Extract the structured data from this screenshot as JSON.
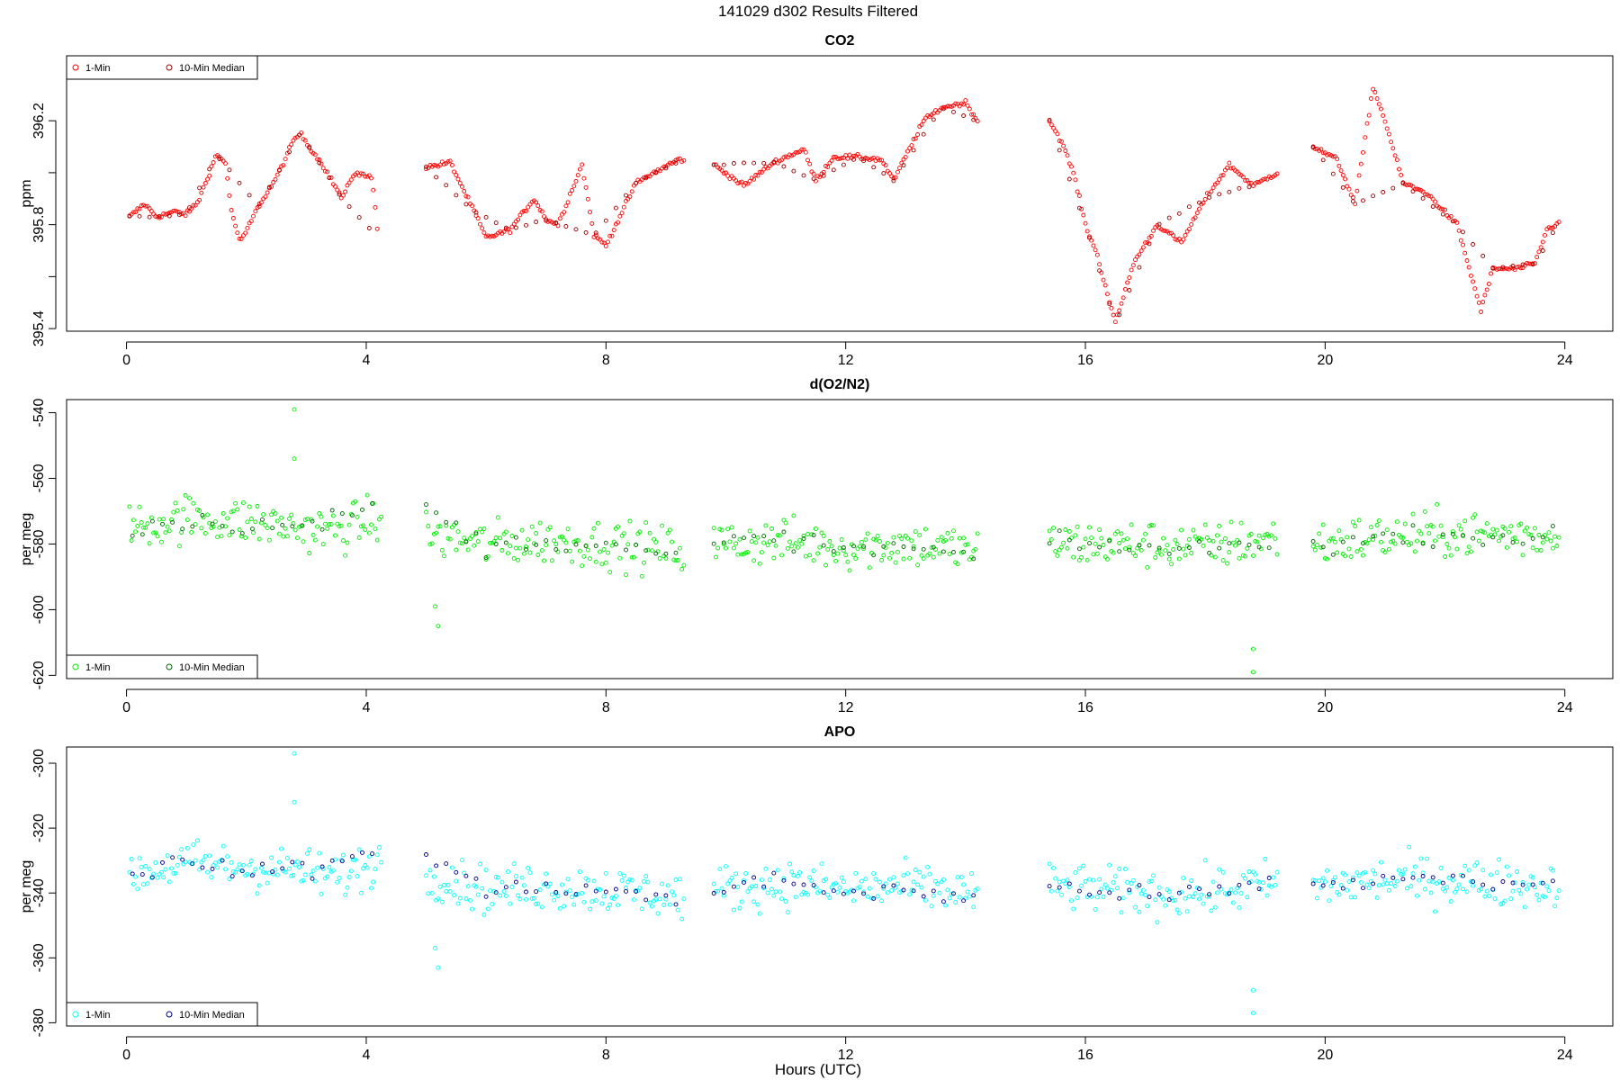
{
  "figure_title": "141029   d302   Results Filtered",
  "xlabel": "Hours (UTC)",
  "chart_data": [
    {
      "type": "scatter",
      "title": "CO2",
      "ylabel": "ppm",
      "xlim": [
        -1.0,
        24.8
      ],
      "ylim": [
        395.39,
        396.45
      ],
      "xticks": [
        0,
        4,
        8,
        12,
        16,
        20,
        24
      ],
      "xtick_labels": [
        "0",
        "4",
        "8",
        "12",
        "16",
        "20",
        "24"
      ],
      "yticks": [
        395.4,
        395.6,
        395.8,
        396.0,
        396.2
      ],
      "ytick_labels": [
        "395.4",
        "",
        "395.8",
        "",
        "396.2"
      ],
      "legend": {
        "position": "top-left",
        "entries": [
          "1-Min",
          "10-Min Median"
        ]
      },
      "series": [
        {
          "name": "1-Min",
          "color": "#ff0000",
          "segments": [
            {
              "x": [
                0.05,
                0.3,
                0.5,
                0.8,
                1.0,
                1.2,
                1.5,
                1.65,
                1.75,
                1.9,
                2.2,
                2.5,
                2.8,
                2.9,
                3.3,
                3.6,
                3.8,
                4.1,
                4.2
              ],
              "y": [
                395.83,
                395.88,
                395.83,
                395.85,
                395.84,
                395.89,
                396.07,
                396.04,
                395.85,
                395.73,
                395.87,
                395.98,
                396.13,
                396.15,
                396.02,
                395.9,
                396.0,
                395.98,
                395.75
              ]
            },
            {
              "x": [
                5.0,
                5.4,
                5.8,
                6.0,
                6.4,
                6.8,
                7.0,
                7.2,
                7.6,
                7.8,
                8.0,
                8.5,
                8.8,
                9.2,
                9.3
              ],
              "y": [
                396.02,
                396.04,
                395.85,
                395.75,
                395.78,
                395.9,
                395.82,
                395.8,
                396.03,
                395.76,
                395.72,
                395.96,
                396.0,
                396.05,
                396.05
              ]
            },
            {
              "x": [
                9.8,
                10.3,
                10.8,
                11.3,
                11.5,
                11.8,
                12.2,
                12.6,
                12.8,
                13.3,
                13.6,
                14.0,
                14.2
              ],
              "y": [
                396.03,
                395.95,
                396.04,
                396.09,
                395.97,
                396.06,
                396.06,
                396.05,
                395.97,
                396.2,
                396.25,
                396.27,
                396.2
              ]
            },
            {
              "x": [
                15.4,
                15.6,
                15.8,
                16.0,
                16.2,
                16.5,
                16.8,
                17.2,
                17.6,
                18.0,
                18.4,
                18.8,
                19.2
              ],
              "y": [
                396.2,
                396.12,
                396.0,
                395.8,
                395.68,
                395.42,
                395.65,
                395.8,
                395.73,
                395.9,
                396.03,
                395.95,
                396.0
              ]
            },
            {
              "x": [
                19.8,
                20.2,
                20.5,
                20.8,
                21.0,
                21.3,
                21.7,
                22.2,
                22.6,
                22.8,
                23.2,
                23.5,
                23.7,
                23.9
              ],
              "y": [
                396.1,
                396.05,
                395.88,
                396.33,
                396.2,
                395.96,
                395.92,
                395.8,
                395.47,
                395.63,
                395.63,
                395.65,
                395.78,
                395.81
              ]
            }
          ]
        },
        {
          "name": "10-Min Median",
          "color": "#990000",
          "segments": [
            {
              "x": [
                0.05,
                0.5,
                1.0,
                1.5,
                2.2,
                2.9,
                3.6,
                4.2
              ],
              "y": [
                395.83,
                395.83,
                395.84,
                396.07,
                395.87,
                396.15,
                395.9,
                395.75
              ]
            },
            {
              "x": [
                5.0,
                5.8,
                6.4,
                7.0,
                7.8,
                8.5,
                9.3
              ],
              "y": [
                396.02,
                395.85,
                395.78,
                395.82,
                395.76,
                395.96,
                396.05
              ]
            },
            {
              "x": [
                9.8,
                10.8,
                11.5,
                12.2,
                12.8,
                13.6,
                14.2
              ],
              "y": [
                396.03,
                396.04,
                395.97,
                396.06,
                395.97,
                396.25,
                396.2
              ]
            },
            {
              "x": [
                15.4,
                16.0,
                16.5,
                17.2,
                18.0,
                18.8
              ],
              "y": [
                396.2,
                395.8,
                395.42,
                395.8,
                395.9,
                395.95
              ]
            },
            {
              "x": [
                19.8,
                20.5,
                21.3,
                22.2,
                22.8,
                23.5,
                23.9
              ],
              "y": [
                396.1,
                395.88,
                395.96,
                395.8,
                395.63,
                395.65,
                395.81
              ]
            }
          ]
        }
      ]
    },
    {
      "type": "scatter",
      "title": "d(O2/N2)",
      "ylabel": "per meg",
      "xlim": [
        -1.0,
        24.8
      ],
      "ylim": [
        -621,
        -536
      ],
      "xticks": [
        0,
        4,
        8,
        12,
        16,
        20,
        24
      ],
      "xtick_labels": [
        "0",
        "4",
        "8",
        "12",
        "16",
        "20",
        "24"
      ],
      "yticks": [
        -620,
        -600,
        -580,
        -560,
        -540
      ],
      "ytick_labels": [
        "-620",
        "-600",
        "-580",
        "-560",
        "-540"
      ],
      "legend": {
        "position": "bottom-left",
        "entries": [
          "1-Min",
          "10-Min Median"
        ]
      },
      "series": [
        {
          "name": "1-Min",
          "color": "#00ee00",
          "segments": [
            {
              "x": [
                0.05,
                1.0,
                2.0,
                2.8,
                3.5,
                4.25
              ],
              "y": [
                -575,
                -572,
                -573,
                -575,
                -576,
                -572
              ]
            },
            {
              "x": [
                5.0,
                6.0,
                7.0,
                8.0,
                9.3
              ],
              "y": [
                -577,
                -580,
                -579,
                -580,
                -582
              ]
            },
            {
              "x": [
                9.8,
                11.0,
                12.0,
                13.0,
                14.2
              ],
              "y": [
                -580,
                -579,
                -581,
                -580,
                -582
              ]
            },
            {
              "x": [
                15.4,
                17.0,
                18.0,
                19.2
              ],
              "y": [
                -580,
                -580,
                -581,
                -578
              ]
            },
            {
              "x": [
                19.8,
                21.0,
                22.0,
                23.0,
                23.9
              ],
              "y": [
                -580,
                -578,
                -577,
                -577,
                -578
              ]
            }
          ],
          "outliers": {
            "x": [
              2.8,
              2.8,
              5.15,
              5.2,
              18.8,
              18.8
            ],
            "y": [
              -539,
              -554,
              -599,
              -605,
              -612,
              -619
            ]
          }
        },
        {
          "name": "10-Min Median",
          "color": "#006600",
          "segments": [
            {
              "x": [
                0.1,
                1.0,
                2.0,
                3.0,
                4.2
              ],
              "y": [
                -575,
                -573,
                -574,
                -575,
                -568
              ]
            },
            {
              "x": [
                5.0,
                6.0,
                7.0,
                8.0,
                9.3
              ],
              "y": [
                -569,
                -581,
                -579,
                -580,
                -585
              ]
            },
            {
              "x": [
                9.8,
                11.0,
                12.0,
                13.0,
                14.2
              ],
              "y": [
                -580,
                -578,
                -582,
                -581,
                -584
              ]
            },
            {
              "x": [
                15.4,
                17.0,
                18.0,
                19.2
              ],
              "y": [
                -580,
                -581,
                -582,
                -578
              ]
            },
            {
              "x": [
                19.8,
                21.0,
                22.0,
                23.0,
                23.9
              ],
              "y": [
                -581,
                -578,
                -577,
                -578,
                -578
              ]
            }
          ]
        }
      ]
    },
    {
      "type": "scatter",
      "title": "APO",
      "ylabel": "per meg",
      "xlim": [
        -1.0,
        24.8
      ],
      "ylim": [
        -381,
        -295
      ],
      "xticks": [
        0,
        4,
        8,
        12,
        16,
        20,
        24
      ],
      "xtick_labels": [
        "0",
        "4",
        "8",
        "12",
        "16",
        "20",
        "24"
      ],
      "yticks": [
        -380,
        -360,
        -340,
        -320,
        -300
      ],
      "ytick_labels": [
        "-380",
        "-360",
        "-340",
        "-320",
        "-300"
      ],
      "legend": {
        "position": "bottom-left",
        "entries": [
          "1-Min",
          "10-Min Median"
        ]
      },
      "series": [
        {
          "name": "1-Min",
          "color": "#00ffff",
          "segments": [
            {
              "x": [
                0.05,
                1.0,
                2.0,
                2.8,
                3.5,
                4.25
              ],
              "y": [
                -334,
                -331,
                -332,
                -333,
                -335,
                -330
              ]
            },
            {
              "x": [
                5.0,
                6.0,
                7.0,
                8.0,
                9.3
              ],
              "y": [
                -334,
                -339,
                -338,
                -339,
                -341
              ]
            },
            {
              "x": [
                9.8,
                11.0,
                12.0,
                13.0,
                14.2
              ],
              "y": [
                -339,
                -337,
                -339,
                -338,
                -340
              ]
            },
            {
              "x": [
                15.4,
                17.0,
                18.0,
                19.2
              ],
              "y": [
                -338,
                -340,
                -340,
                -337
              ]
            },
            {
              "x": [
                19.8,
                21.0,
                22.0,
                23.0,
                23.9
              ],
              "y": [
                -338,
                -336,
                -336,
                -337,
                -338
              ]
            }
          ],
          "outliers": {
            "x": [
              2.8,
              2.8,
              5.15,
              5.2,
              18.8,
              18.8
            ],
            "y": [
              -297,
              -312,
              -357,
              -363,
              -370,
              -377
            ]
          }
        },
        {
          "name": "10-Min Median",
          "color": "#00008b",
          "segments": [
            {
              "x": [
                0.1,
                1.0,
                2.0,
                3.0,
                4.2
              ],
              "y": [
                -333,
                -331,
                -333,
                -333,
                -327
              ]
            },
            {
              "x": [
                5.0,
                6.0,
                7.0,
                8.0,
                9.3
              ],
              "y": [
                -327,
                -340,
                -338,
                -339,
                -343
              ]
            },
            {
              "x": [
                9.8,
                11.0,
                12.0,
                13.0,
                14.2
              ],
              "y": [
                -339,
                -336,
                -340,
                -339,
                -343
              ]
            },
            {
              "x": [
                15.4,
                17.0,
                18.0,
                19.2
              ],
              "y": [
                -337,
                -341,
                -340,
                -337
              ]
            },
            {
              "x": [
                19.8,
                21.0,
                22.0,
                23.0,
                23.9
              ],
              "y": [
                -338,
                -336,
                -335,
                -337,
                -338
              ]
            }
          ]
        }
      ]
    }
  ]
}
